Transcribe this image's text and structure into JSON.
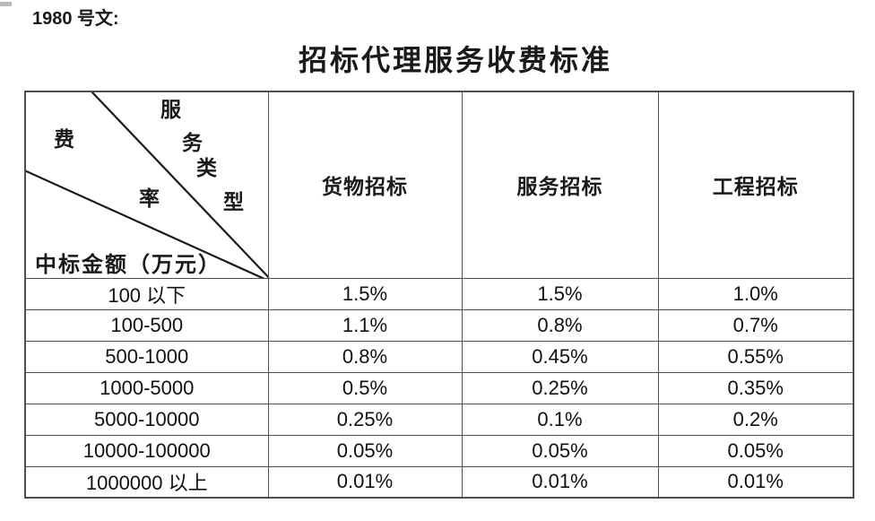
{
  "doc_label": "1980 号文:",
  "title": "招标代理服务收费标准",
  "colors": {
    "text": "#1a1a1a",
    "table_border": "#4d4d4d",
    "background": "#ffffff"
  },
  "table": {
    "diagonal_header": {
      "top_axis_chars": [
        "服",
        "务",
        "类",
        "型"
      ],
      "mid_axis_chars": [
        "费",
        "率"
      ],
      "bottom_axis_label": "中标金额（万元）"
    },
    "columns": [
      "货物招标",
      "服务招标",
      "工程招标"
    ],
    "rows": [
      {
        "amount": "100 以下",
        "goods": "1.5%",
        "services": "1.5%",
        "engineering": "1.0%"
      },
      {
        "amount": "100-500",
        "goods": "1.1%",
        "services": "0.8%",
        "engineering": "0.7%"
      },
      {
        "amount": "500-1000",
        "goods": "0.8%",
        "services": "0.45%",
        "engineering": "0.55%"
      },
      {
        "amount": "1000-5000",
        "goods": "0.5%",
        "services": "0.25%",
        "engineering": "0.35%"
      },
      {
        "amount": "5000-10000",
        "goods": "0.25%",
        "services": "0.1%",
        "engineering": "0.2%"
      },
      {
        "amount": "10000-100000",
        "goods": "0.05%",
        "services": "0.05%",
        "engineering": "0.05%"
      },
      {
        "amount": "1000000 以上",
        "goods": "0.01%",
        "services": "0.01%",
        "engineering": "0.01%"
      }
    ]
  }
}
